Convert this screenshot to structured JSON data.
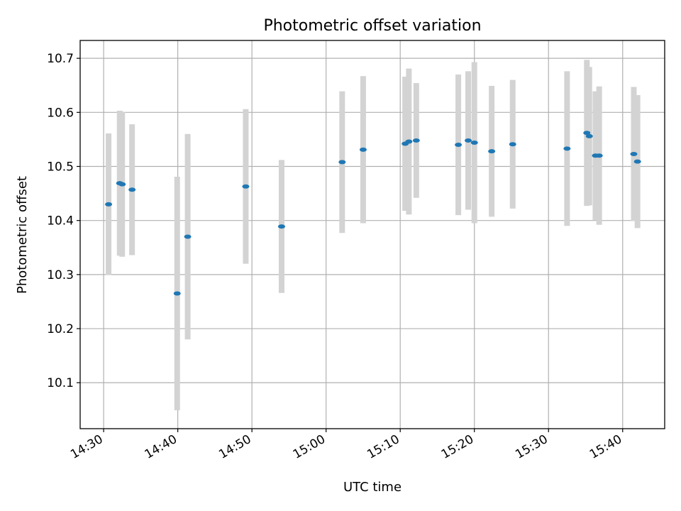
{
  "chart_data": {
    "type": "scatter",
    "title": "Photometric offset variation",
    "xlabel": "UTC time",
    "ylabel": "Photometric offset",
    "xlim": [
      "14:26:50",
      "15:45:40"
    ],
    "ylim": [
      10.015,
      10.733
    ],
    "grid": true,
    "xticks": [
      "14:30",
      "14:40",
      "14:50",
      "15:00",
      "15:10",
      "15:20",
      "15:30",
      "15:40"
    ],
    "yticks": [
      10.1,
      10.2,
      10.3,
      10.4,
      10.5,
      10.6,
      10.7
    ],
    "ytick_labels": [
      "10.1",
      "10.2",
      "10.3",
      "10.4",
      "10.5",
      "10.6",
      "10.7"
    ],
    "point_color": "#1f77b4",
    "errorbar_color": "#d3d3d3",
    "points": [
      {
        "x": "14:30:40",
        "y": 10.43,
        "err": 0.131
      },
      {
        "x": "14:32:10",
        "y": 10.469,
        "err": 0.134
      },
      {
        "x": "14:32:30",
        "y": 10.467,
        "err": 0.134
      },
      {
        "x": "14:33:50",
        "y": 10.457,
        "err": 0.121
      },
      {
        "x": "14:39:55",
        "y": 10.265,
        "err": 0.216
      },
      {
        "x": "14:41:20",
        "y": 10.37,
        "err": 0.19
      },
      {
        "x": "14:49:10",
        "y": 10.463,
        "err": 0.143
      },
      {
        "x": "14:54:00",
        "y": 10.389,
        "err": 0.123
      },
      {
        "x": "15:02:10",
        "y": 10.508,
        "err": 0.131
      },
      {
        "x": "15:05:00",
        "y": 10.531,
        "err": 0.136
      },
      {
        "x": "15:10:40",
        "y": 10.542,
        "err": 0.124
      },
      {
        "x": "15:11:10",
        "y": 10.546,
        "err": 0.135
      },
      {
        "x": "15:12:10",
        "y": 10.548,
        "err": 0.106
      },
      {
        "x": "15:17:50",
        "y": 10.54,
        "err": 0.13
      },
      {
        "x": "15:19:10",
        "y": 10.548,
        "err": 0.128
      },
      {
        "x": "15:20:00",
        "y": 10.544,
        "err": 0.149
      },
      {
        "x": "15:22:20",
        "y": 10.528,
        "err": 0.121
      },
      {
        "x": "15:25:10",
        "y": 10.541,
        "err": 0.119
      },
      {
        "x": "15:32:30",
        "y": 10.533,
        "err": 0.143
      },
      {
        "x": "15:35:10",
        "y": 10.562,
        "err": 0.135
      },
      {
        "x": "15:35:30",
        "y": 10.556,
        "err": 0.128
      },
      {
        "x": "15:36:20",
        "y": 10.52,
        "err": 0.119
      },
      {
        "x": "15:36:50",
        "y": 10.52,
        "err": 0.128
      },
      {
        "x": "15:41:30",
        "y": 10.523,
        "err": 0.124
      },
      {
        "x": "15:42:00",
        "y": 10.509,
        "err": 0.123
      }
    ]
  }
}
